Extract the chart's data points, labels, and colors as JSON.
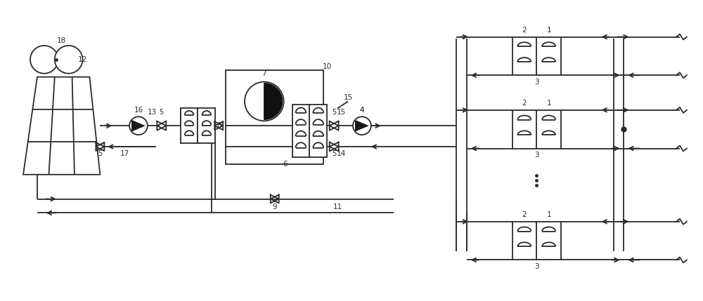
{
  "bg_color": "#ffffff",
  "line_color": "#2a2a2a",
  "line_width": 1.3,
  "figsize": [
    10.0,
    4.29
  ],
  "dpi": 100,
  "xlim": [
    0,
    100
  ],
  "ylim": [
    0,
    42.9
  ]
}
